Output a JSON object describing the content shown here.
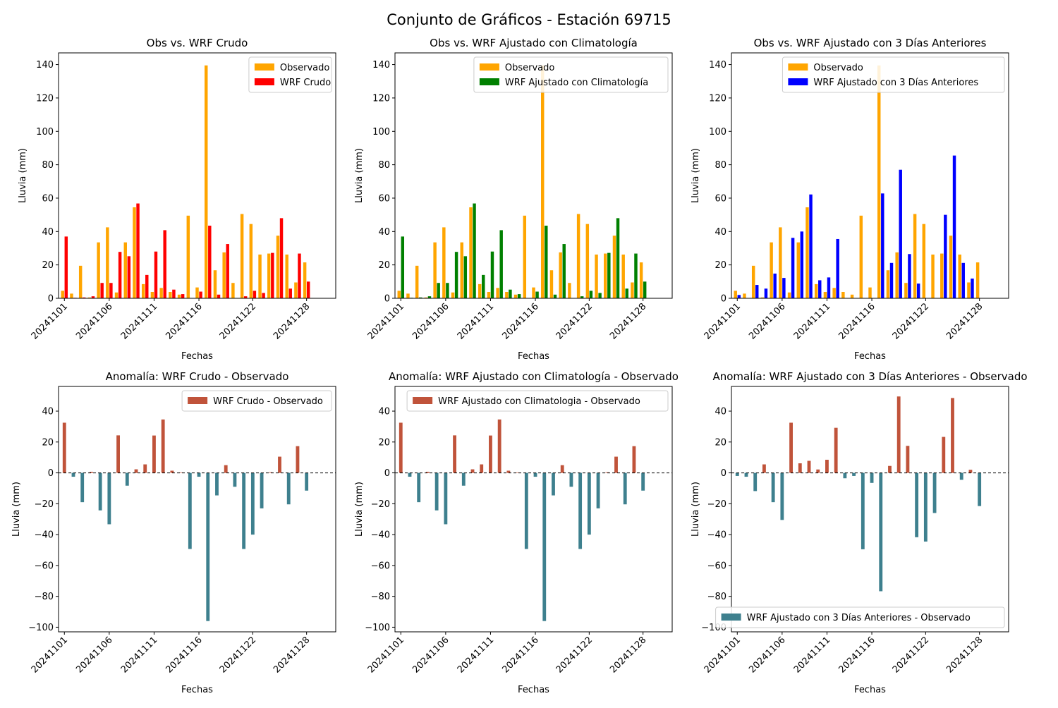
{
  "figure": {
    "title": "Conjunto de Gráficos - Estación 69715"
  },
  "chart_data": [
    {
      "type": "bar",
      "title": "Obs vs. WRF Crudo",
      "xlabel": "Fechas",
      "ylabel": "Lluvia (mm)",
      "ylim": [
        0,
        147
      ],
      "yticks": [
        0,
        20,
        40,
        60,
        80,
        100,
        120,
        140
      ],
      "xticks": [
        "20241101",
        "20241106",
        "20241111",
        "20241116",
        "20241122",
        "20241128"
      ],
      "legend_position": "top-right",
      "grid": false,
      "x": [
        "20241101",
        "20241102",
        "20241103",
        "20241104",
        "20241105",
        "20241106",
        "20241107",
        "20241108",
        "20241109",
        "20241110",
        "20241111",
        "20241112",
        "20241113",
        "20241114",
        "20241115",
        "20241116",
        "20241117",
        "20241118",
        "20241119",
        "20241120",
        "20241121",
        "20241122",
        "20241123",
        "20241124",
        "20241125",
        "20241126",
        "20241127",
        "20241128",
        "20241129",
        "20241130"
      ],
      "series": [
        {
          "name": "Observado",
          "color": "#ffa500",
          "values": [
            4.5,
            2.8,
            19.5,
            0.5,
            33.5,
            42.5,
            3.5,
            33.5,
            54.5,
            8.5,
            3.8,
            6.2,
            3.8,
            2.2,
            49.5,
            6.5,
            139.5,
            16.8,
            27.5,
            9.2,
            50.5,
            44.5,
            26.2,
            26.8,
            37.5,
            26.2,
            9.5,
            21.5,
            0,
            0
          ]
        },
        {
          "name": "WRF Crudo",
          "color": "#ff0000",
          "values": [
            37.0,
            0.3,
            0.5,
            1.2,
            9.2,
            9.2,
            27.8,
            25.2,
            56.8,
            14.0,
            28.0,
            40.8,
            5.2,
            2.5,
            0.2,
            4.0,
            43.5,
            2.2,
            32.5,
            0.2,
            1.2,
            4.5,
            3.2,
            27.2,
            48.0,
            5.8,
            26.8,
            10.0,
            0,
            0
          ]
        }
      ]
    },
    {
      "type": "bar",
      "title": "Obs vs. WRF Ajustado con Climatología",
      "xlabel": "Fechas",
      "ylabel": "Lluvia (mm)",
      "ylim": [
        0,
        147
      ],
      "yticks": [
        0,
        20,
        40,
        60,
        80,
        100,
        120,
        140
      ],
      "xticks": [
        "20241101",
        "20241106",
        "20241111",
        "20241116",
        "20241122",
        "20241128"
      ],
      "legend_position": "top-right",
      "grid": false,
      "x": [
        "20241101",
        "20241102",
        "20241103",
        "20241104",
        "20241105",
        "20241106",
        "20241107",
        "20241108",
        "20241109",
        "20241110",
        "20241111",
        "20241112",
        "20241113",
        "20241114",
        "20241115",
        "20241116",
        "20241117",
        "20241118",
        "20241119",
        "20241120",
        "20241121",
        "20241122",
        "20241123",
        "20241124",
        "20241125",
        "20241126",
        "20241127",
        "20241128",
        "20241129",
        "20241130"
      ],
      "series": [
        {
          "name": "Observado",
          "color": "#ffa500",
          "values": [
            4.5,
            2.8,
            19.5,
            0.5,
            33.5,
            42.5,
            3.5,
            33.5,
            54.5,
            8.5,
            3.8,
            6.2,
            3.8,
            2.2,
            49.5,
            6.5,
            139.5,
            16.8,
            27.5,
            9.2,
            50.5,
            44.5,
            26.2,
            26.8,
            37.5,
            26.2,
            9.5,
            21.5,
            0,
            0
          ]
        },
        {
          "name": "WRF Ajustado con Climatología",
          "color": "#008000",
          "values": [
            37.0,
            0.3,
            0.5,
            1.2,
            9.2,
            9.2,
            27.8,
            25.2,
            56.8,
            14.0,
            28.0,
            40.8,
            5.2,
            2.5,
            0.2,
            4.0,
            43.5,
            2.2,
            32.5,
            0.2,
            1.2,
            4.5,
            3.2,
            27.2,
            48.0,
            5.8,
            26.8,
            10.0,
            0,
            0
          ]
        }
      ]
    },
    {
      "type": "bar",
      "title": "Obs vs. WRF Ajustado con 3 Días Anteriores",
      "xlabel": "Fechas",
      "ylabel": "Lluvia (mm)",
      "ylim": [
        0,
        147
      ],
      "yticks": [
        0,
        20,
        40,
        60,
        80,
        100,
        120,
        140
      ],
      "xticks": [
        "20241101",
        "20241106",
        "20241111",
        "20241116",
        "20241122",
        "20241128"
      ],
      "legend_position": "top-right",
      "grid": false,
      "x": [
        "20241101",
        "20241102",
        "20241103",
        "20241104",
        "20241105",
        "20241106",
        "20241107",
        "20241108",
        "20241109",
        "20241110",
        "20241111",
        "20241112",
        "20241113",
        "20241114",
        "20241115",
        "20241116",
        "20241117",
        "20241118",
        "20241119",
        "20241120",
        "20241121",
        "20241122",
        "20241123",
        "20241124",
        "20241125",
        "20241126",
        "20241127",
        "20241128",
        "20241129",
        "20241130"
      ],
      "series": [
        {
          "name": "Observado",
          "color": "#ffa500",
          "values": [
            4.5,
            2.8,
            19.5,
            0.5,
            33.5,
            42.5,
            3.5,
            33.5,
            54.5,
            8.5,
            3.8,
            6.2,
            3.8,
            2.2,
            49.5,
            6.5,
            139.5,
            16.8,
            27.5,
            9.2,
            50.5,
            44.5,
            26.2,
            26.8,
            37.5,
            26.2,
            9.5,
            21.5,
            0,
            0
          ]
        },
        {
          "name": "WRF Ajustado con 3 Días Anteriores",
          "color": "#0000ff",
          "values": [
            2.0,
            0,
            8.0,
            5.8,
            14.8,
            12.2,
            36.2,
            40.0,
            62.2,
            10.8,
            12.5,
            35.5,
            0,
            0,
            0,
            0,
            62.8,
            21.2,
            77.0,
            26.5,
            8.8,
            0,
            0,
            50.0,
            85.5,
            21.2,
            11.8,
            0,
            0,
            0
          ]
        }
      ]
    },
    {
      "type": "bar",
      "title": "Anomalía: WRF Crudo - Observado",
      "xlabel": "Fechas",
      "ylabel": "Lluvia (mm)",
      "ylim": [
        -103,
        56
      ],
      "yticks": [
        -100,
        -80,
        -60,
        -40,
        -20,
        0,
        20,
        40
      ],
      "xticks": [
        "20241101",
        "20241106",
        "20241111",
        "20241116",
        "20241122",
        "20241128"
      ],
      "legend_position": "top-right",
      "grid": false,
      "zero_line": true,
      "x": [
        "20241101",
        "20241102",
        "20241103",
        "20241104",
        "20241105",
        "20241106",
        "20241107",
        "20241108",
        "20241109",
        "20241110",
        "20241111",
        "20241112",
        "20241113",
        "20241114",
        "20241115",
        "20241116",
        "20241117",
        "20241118",
        "20241119",
        "20241120",
        "20241121",
        "20241122",
        "20241123",
        "20241124",
        "20241125",
        "20241126",
        "20241127",
        "20241128",
        "20241129",
        "20241130"
      ],
      "positive_color": "#c0533a",
      "negative_color": "#3e808e",
      "series": [
        {
          "name": "WRF Crudo - Observado",
          "values": [
            32.5,
            -2.5,
            -19.0,
            0.7,
            -24.3,
            -33.3,
            24.3,
            -8.3,
            2.3,
            5.5,
            24.2,
            34.6,
            1.4,
            0.3,
            -49.3,
            -2.5,
            -96.0,
            -14.6,
            5.0,
            -9.0,
            -49.3,
            -40.0,
            -23.0,
            0.4,
            10.5,
            -20.4,
            17.3,
            -11.5,
            0,
            0
          ]
        }
      ]
    },
    {
      "type": "bar",
      "title": "Anomalía: WRF Ajustado con Climatología - Observado",
      "xlabel": "Fechas",
      "ylabel": "Lluvia (mm)",
      "ylim": [
        -103,
        56
      ],
      "yticks": [
        -100,
        -80,
        -60,
        -40,
        -20,
        0,
        20,
        40
      ],
      "xticks": [
        "20241101",
        "20241106",
        "20241111",
        "20241116",
        "20241122",
        "20241128"
      ],
      "legend_position": "top-right",
      "grid": false,
      "zero_line": true,
      "x": [
        "20241101",
        "20241102",
        "20241103",
        "20241104",
        "20241105",
        "20241106",
        "20241107",
        "20241108",
        "20241109",
        "20241110",
        "20241111",
        "20241112",
        "20241113",
        "20241114",
        "20241115",
        "20241116",
        "20241117",
        "20241118",
        "20241119",
        "20241120",
        "20241121",
        "20241122",
        "20241123",
        "20241124",
        "20241125",
        "20241126",
        "20241127",
        "20241128",
        "20241129",
        "20241130"
      ],
      "positive_color": "#c0533a",
      "negative_color": "#3e808e",
      "series": [
        {
          "name": "WRF Ajustado con Climatologia - Observado",
          "values": [
            32.5,
            -2.5,
            -19.0,
            0.7,
            -24.3,
            -33.3,
            24.3,
            -8.3,
            2.3,
            5.5,
            24.2,
            34.6,
            1.4,
            0.3,
            -49.3,
            -2.5,
            -96.0,
            -14.6,
            5.0,
            -9.0,
            -49.3,
            -40.0,
            -23.0,
            0.4,
            10.5,
            -20.4,
            17.3,
            -11.5,
            0,
            0
          ]
        }
      ]
    },
    {
      "type": "bar",
      "title": "Anomalía: WRF Ajustado con 3 Días Anteriores - Observado",
      "xlabel": "Fechas",
      "ylabel": "Lluvia (mm)",
      "ylim": [
        -103,
        56
      ],
      "yticks": [
        -100,
        -80,
        -60,
        -40,
        -20,
        0,
        20,
        40
      ],
      "xticks": [
        "20241101",
        "20241106",
        "20241111",
        "20241116",
        "20241122",
        "20241128"
      ],
      "legend_position": "bottom-right",
      "grid": false,
      "zero_line": true,
      "x": [
        "20241101",
        "20241102",
        "20241103",
        "20241104",
        "20241105",
        "20241106",
        "20241107",
        "20241108",
        "20241109",
        "20241110",
        "20241111",
        "20241112",
        "20241113",
        "20241114",
        "20241115",
        "20241116",
        "20241117",
        "20241118",
        "20241119",
        "20241120",
        "20241121",
        "20241122",
        "20241123",
        "20241124",
        "20241125",
        "20241126",
        "20241127",
        "20241128",
        "20241129",
        "20241130"
      ],
      "positive_color": "#c0533a",
      "negative_color": "#3e808e",
      "series": [
        {
          "name": "WRF Ajustado con 3 Días Anteriores - Observado",
          "values": [
            -2.0,
            -2.5,
            -11.8,
            5.5,
            -19.0,
            -30.5,
            32.5,
            6.2,
            7.8,
            2.2,
            8.5,
            29.2,
            -3.5,
            -2.0,
            -49.5,
            -6.5,
            -76.7,
            4.5,
            49.5,
            17.5,
            -41.7,
            -44.5,
            -26.0,
            23.3,
            48.5,
            -4.5,
            2.0,
            -21.5,
            0,
            0
          ]
        }
      ]
    }
  ]
}
